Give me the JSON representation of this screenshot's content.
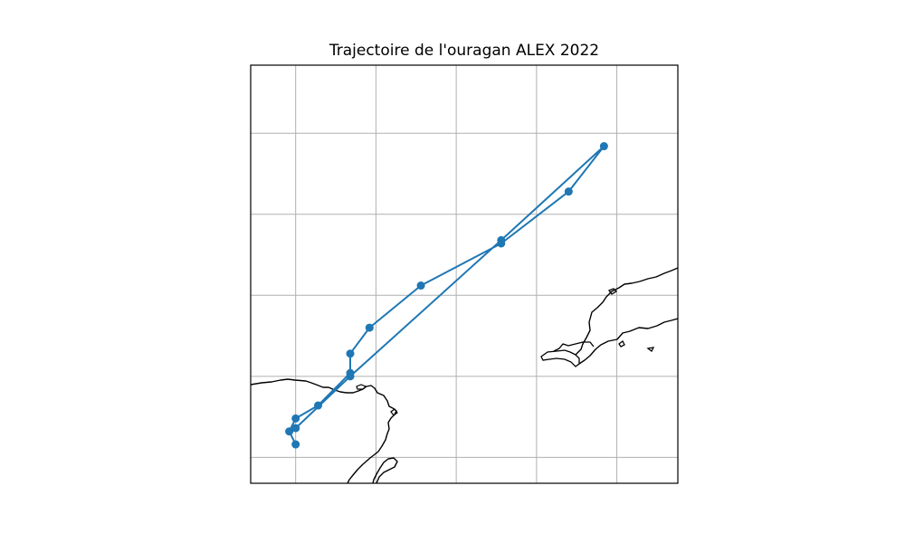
{
  "chart_data": {
    "type": "line",
    "title": "Trajectoire de l'ouragan ALEX 2022",
    "map": {
      "projection": "PlateCarree",
      "coastlines": true,
      "grid": true,
      "tick_labels": false
    },
    "series": [
      {
        "color": "#1f77b4",
        "marker": "circle",
        "points": [
          {
            "lon": -86.6,
            "lat": 21.1
          },
          {
            "lon": -86.8,
            "lat": 21.5
          },
          {
            "lon": -86.6,
            "lat": 21.9
          },
          {
            "lon": -85.9,
            "lat": 22.3
          },
          {
            "lon": -84.9,
            "lat": 23.3
          },
          {
            "lon": -84.9,
            "lat": 23.9
          },
          {
            "lon": -84.3,
            "lat": 24.7
          },
          {
            "lon": -82.7,
            "lat": 26.0
          },
          {
            "lon": -80.2,
            "lat": 27.3
          },
          {
            "lon": -78.1,
            "lat": 28.9
          },
          {
            "lon": -77.0,
            "lat": 30.3
          },
          {
            "lon": -80.2,
            "lat": 27.4
          },
          {
            "lon": -84.9,
            "lat": 23.2
          },
          {
            "lon": -86.6,
            "lat": 21.6
          }
        ]
      }
    ],
    "xlim": [
      -88.0,
      -74.7
    ],
    "ylim": [
      19.9,
      32.8
    ],
    "grid_lon": [
      -86.6,
      -84.1,
      -81.6,
      -79.1,
      -76.6
    ],
    "grid_lat": [
      20.7,
      23.2,
      25.7,
      28.2,
      30.7
    ]
  }
}
